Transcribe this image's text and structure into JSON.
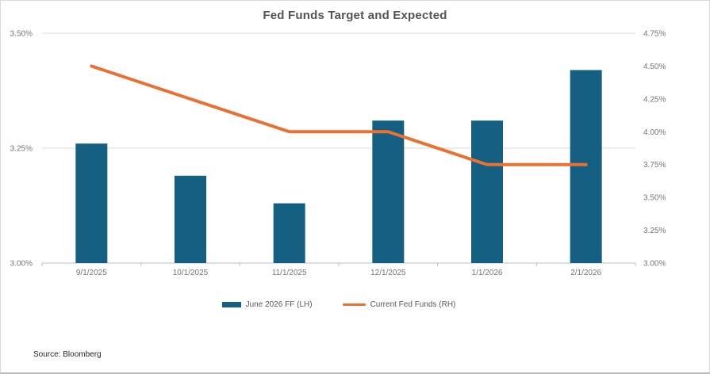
{
  "source_note": "Source: Bloomberg",
  "chart_data": {
    "type": "combo_bar_line",
    "title": "Fed Funds Target and Expected",
    "categories": [
      "9/1/2025",
      "10/1/2025",
      "11/1/2025",
      "12/1/2025",
      "1/1/2026",
      "2/1/2026"
    ],
    "series": [
      {
        "name": "June 2026 FF (LH)",
        "type": "bar",
        "axis": "left",
        "color": "#156082",
        "values": [
          3.26,
          3.19,
          3.13,
          3.31,
          3.31,
          3.42
        ]
      },
      {
        "name": "Current Fed Funds (RH)",
        "type": "line",
        "axis": "right",
        "color": "#E97132",
        "values": [
          4.5,
          4.25,
          4.0,
          4.0,
          3.75,
          3.75
        ]
      }
    ],
    "left_axis": {
      "min": 3.0,
      "max": 3.5,
      "step": 0.25,
      "tick_labels": [
        "3.50%",
        "3.25%",
        "3.00%"
      ]
    },
    "right_axis": {
      "min": 3.0,
      "max": 4.75,
      "step": 0.25,
      "tick_labels": [
        "4.75%",
        "4.50%",
        "4.25%",
        "4.00%",
        "3.75%",
        "3.50%",
        "3.25%",
        "3.00%"
      ]
    },
    "legend_position": "bottom",
    "gridlines": true,
    "grid_color": "#d9d9d9",
    "axis_line_color": "#bfbfbf",
    "axis_text_color": "#767676"
  }
}
